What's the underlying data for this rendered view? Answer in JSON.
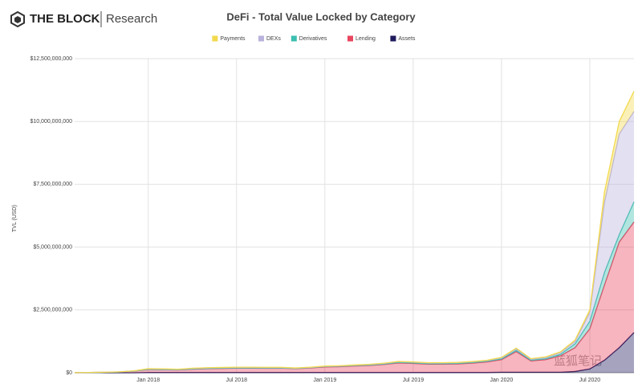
{
  "brand": {
    "name": "THE BLOCK",
    "section": "Research"
  },
  "watermark": "蓝狐笔记",
  "chart_data": {
    "type": "stacked_area",
    "title": "DeFi - Total Value Locked by Category",
    "y_label": "TVL (USD)",
    "legend": "top",
    "grid": true,
    "x": [
      "2017-08",
      "2017-09",
      "2017-10",
      "2017-11",
      "2017-12",
      "2018-01",
      "2018-02",
      "2018-03",
      "2018-04",
      "2018-05",
      "2018-06",
      "2018-07",
      "2018-08",
      "2018-09",
      "2018-10",
      "2018-11",
      "2018-12",
      "2019-01",
      "2019-02",
      "2019-03",
      "2019-04",
      "2019-05",
      "2019-06",
      "2019-07",
      "2019-08",
      "2019-09",
      "2019-10",
      "2019-11",
      "2019-12",
      "2020-01",
      "2020-02",
      "2020-03",
      "2020-04",
      "2020-05",
      "2020-06",
      "2020-07",
      "2020-08",
      "2020-09",
      "2020-10"
    ],
    "xlim": [
      "2017-08",
      "2020-10"
    ],
    "xticks": [
      {
        "value": "2018-01",
        "label": "Jan 2018"
      },
      {
        "value": "2018-07",
        "label": "Jul 2018"
      },
      {
        "value": "2019-01",
        "label": "Jan 2019"
      },
      {
        "value": "2019-07",
        "label": "Jul 2019"
      },
      {
        "value": "2020-01",
        "label": "Jan 2020"
      },
      {
        "value": "2020-07",
        "label": "Jul 2020"
      }
    ],
    "ylim": [
      0,
      12500000000
    ],
    "yticks": [
      {
        "value": 0,
        "label": "$0"
      },
      {
        "value": 2500000000,
        "label": "$2,500,000,000"
      },
      {
        "value": 5000000000,
        "label": "$5,000,000,000"
      },
      {
        "value": 7500000000,
        "label": "$7,500,000,000"
      },
      {
        "value": 10000000000,
        "label": "$10,000,000,000"
      },
      {
        "value": 12500000000,
        "label": "$12,500,000,000"
      }
    ],
    "series": [
      {
        "name": "Payments",
        "color": "#f2d94e",
        "values": [
          0,
          0,
          0,
          0,
          2000000,
          10000000,
          10000000,
          10000000,
          10000000,
          10000000,
          10000000,
          10000000,
          10000000,
          10000000,
          10000000,
          10000000,
          10000000,
          10000000,
          10000000,
          10000000,
          10000000,
          10000000,
          10000000,
          10000000,
          10000000,
          10000000,
          10000000,
          10000000,
          10000000,
          20000000,
          30000000,
          20000000,
          20000000,
          30000000,
          50000000,
          100000000,
          400000000,
          500000000,
          800000000
        ]
      },
      {
        "name": "DEXs",
        "color": "#b9b2dc",
        "values": [
          0,
          2000000,
          5000000,
          5000000,
          10000000,
          20000000,
          20000000,
          15000000,
          20000000,
          20000000,
          20000000,
          20000000,
          20000000,
          20000000,
          15000000,
          10000000,
          10000000,
          10000000,
          15000000,
          15000000,
          20000000,
          25000000,
          30000000,
          30000000,
          30000000,
          30000000,
          30000000,
          30000000,
          30000000,
          40000000,
          60000000,
          40000000,
          50000000,
          70000000,
          100000000,
          350000000,
          2800000000,
          4000000000,
          3600000000
        ]
      },
      {
        "name": "Derivatives",
        "color": "#3cbfb0",
        "values": [
          0,
          0,
          0,
          0,
          0,
          5000000,
          5000000,
          5000000,
          10000000,
          10000000,
          10000000,
          10000000,
          10000000,
          10000000,
          10000000,
          10000000,
          10000000,
          15000000,
          15000000,
          15000000,
          15000000,
          15000000,
          20000000,
          20000000,
          20000000,
          20000000,
          20000000,
          25000000,
          25000000,
          30000000,
          50000000,
          30000000,
          40000000,
          60000000,
          150000000,
          300000000,
          500000000,
          300000000,
          800000000
        ]
      },
      {
        "name": "Lending",
        "color": "#e8465e",
        "values": [
          5000000,
          10000000,
          15000000,
          30000000,
          60000000,
          120000000,
          110000000,
          100000000,
          130000000,
          150000000,
          160000000,
          170000000,
          170000000,
          165000000,
          170000000,
          150000000,
          180000000,
          220000000,
          230000000,
          260000000,
          280000000,
          320000000,
          380000000,
          360000000,
          330000000,
          330000000,
          340000000,
          370000000,
          420000000,
          500000000,
          820000000,
          450000000,
          500000000,
          650000000,
          950000000,
          1600000000,
          3000000000,
          4200000000,
          4400000000
        ]
      },
      {
        "name": "Assets",
        "color": "#1f1a5c",
        "values": [
          0,
          0,
          0,
          0,
          0,
          10000000,
          10000000,
          10000000,
          10000000,
          10000000,
          10000000,
          10000000,
          10000000,
          10000000,
          10000000,
          10000000,
          10000000,
          10000000,
          10000000,
          10000000,
          10000000,
          10000000,
          10000000,
          10000000,
          10000000,
          10000000,
          10000000,
          10000000,
          10000000,
          20000000,
          20000000,
          20000000,
          20000000,
          20000000,
          50000000,
          150000000,
          500000000,
          1000000000,
          1600000000
        ]
      }
    ]
  }
}
